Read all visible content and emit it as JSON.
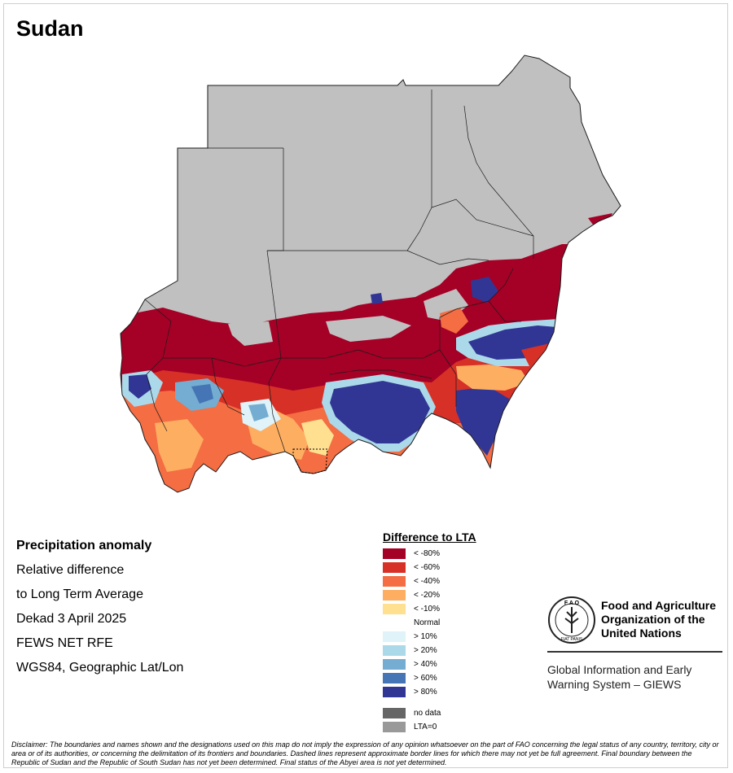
{
  "title": "Sudan",
  "info": {
    "line1": "Precipitation anomaly",
    "line2": "Relative difference",
    "line3": "to Long Term Average",
    "line4": "Dekad 3 April 2025",
    "line5": "FEWS NET RFE",
    "line6": "WGS84, Geographic Lat/Lon"
  },
  "legend": {
    "title": "Difference to LTA",
    "classes": [
      {
        "label": "< -80%",
        "color": "#a50026"
      },
      {
        "label": "< -60%",
        "color": "#d73027"
      },
      {
        "label": "< -40%",
        "color": "#f46d43"
      },
      {
        "label": "< -20%",
        "color": "#fdae61"
      },
      {
        "label": "< -10%",
        "color": "#fee090"
      },
      {
        "label": "Normal",
        "color": "#ffffff"
      },
      {
        "label": "> 10%",
        "color": "#e0f3f8"
      },
      {
        "label": "> 20%",
        "color": "#abd9e9"
      },
      {
        "label": "> 40%",
        "color": "#74add1"
      },
      {
        "label": "> 60%",
        "color": "#4575b4"
      },
      {
        "label": "> 80%",
        "color": "#313695"
      }
    ],
    "extra": [
      {
        "label": "no data",
        "color": "#666666"
      },
      {
        "label": "LTA=0",
        "color": "#999999"
      }
    ]
  },
  "colors": {
    "dry_area": "#c0c0c0",
    "boundary": "#1a1a1a"
  },
  "logo": {
    "icon": "fao-emblem-icon",
    "org_line1": "Food and Agriculture",
    "org_line2": "Organization of the",
    "org_line3": "United Nations",
    "giews_line1": "Global Information and Early",
    "giews_line2": "Warning System – GIEWS"
  },
  "disclaimer": "Disclaimer: The boundaries and names shown and the designations used on this map do not imply the expression of any opinion whatsoever on the part of FAO concerning the legal status of any country, territory, city or area or of its authorities, or concerning the delimitation of its frontiers and boundaries. Dashed lines represent approximate border lines for which there may not yet be full agreement. Final boundary between the Republic of Sudan and the Republic of South Sudan has not yet been determined. Final status of the Abyei area is not yet determined."
}
